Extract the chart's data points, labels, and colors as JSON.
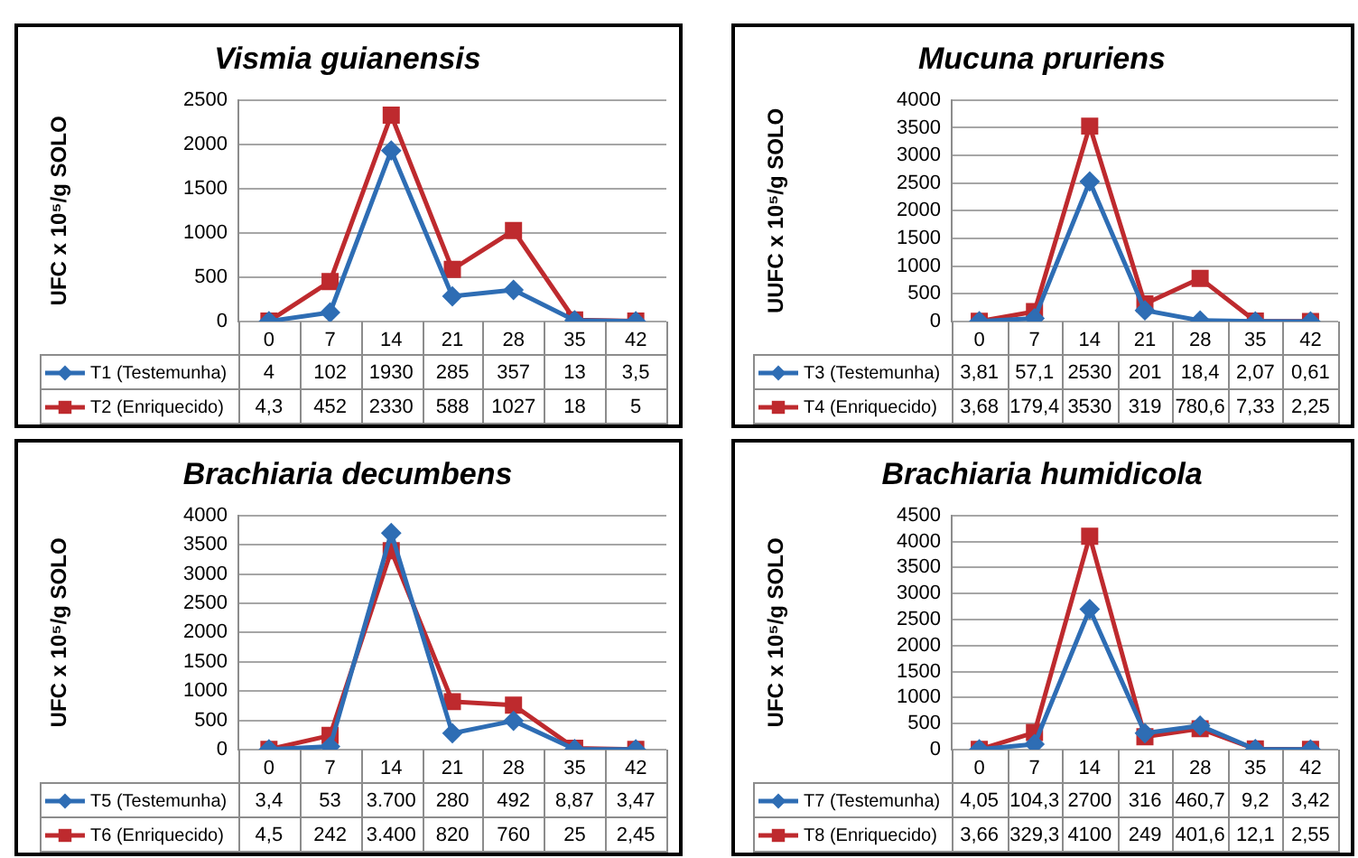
{
  "chart_data": [
    {
      "type": "line",
      "title": "Vismia guianensis",
      "ylabel": "UFC x 10⁵/g SOLO",
      "categories": [
        "0",
        "7",
        "14",
        "21",
        "28",
        "35",
        "42"
      ],
      "ylim": [
        0,
        2500
      ],
      "yticks": [
        0,
        500,
        1000,
        1500,
        2000,
        2500
      ],
      "grid": "y",
      "legend": "bottom",
      "series": [
        {
          "name": "T1 (Testemunha)",
          "color": "#2e6db4",
          "marker": "diamond",
          "values": [
            4,
            102,
            1930,
            285,
            357,
            13,
            3.5
          ],
          "value_labels": [
            "4",
            "102",
            "1930",
            "285",
            "357",
            "13",
            "3,5"
          ]
        },
        {
          "name": "T2 (Enriquecido)",
          "color": "#be2a2e",
          "marker": "square",
          "values": [
            4.3,
            452,
            2330,
            588,
            1027,
            18,
            5
          ],
          "value_labels": [
            "4,3",
            "452",
            "2330",
            "588",
            "1027",
            "18",
            "5"
          ]
        }
      ]
    },
    {
      "type": "line",
      "title": "Mucuna pruriens",
      "ylabel": "UUFC x 10⁵/g SOLO",
      "categories": [
        "0",
        "7",
        "14",
        "21",
        "28",
        "35",
        "42"
      ],
      "ylim": [
        0,
        4000
      ],
      "yticks": [
        0,
        500,
        1000,
        1500,
        2000,
        2500,
        3000,
        3500,
        4000
      ],
      "grid": "y",
      "legend": "bottom",
      "series": [
        {
          "name": "T3 (Testemunha)",
          "color": "#2e6db4",
          "marker": "diamond",
          "values": [
            3.81,
            57.1,
            2530,
            201,
            18.4,
            2.07,
            0.61
          ],
          "value_labels": [
            "3,81",
            "57,1",
            "2530",
            "201",
            "18,4",
            "2,07",
            "0,61"
          ]
        },
        {
          "name": "T4 (Enriquecido)",
          "color": "#be2a2e",
          "marker": "square",
          "values": [
            3.68,
            179.4,
            3530,
            319,
            780.6,
            7.33,
            2.25
          ],
          "value_labels": [
            "3,68",
            "179,4",
            "3530",
            "319",
            "780,6",
            "7,33",
            "2,25"
          ]
        }
      ]
    },
    {
      "type": "line",
      "title": "Brachiaria decumbens",
      "ylabel": "UFC x 10⁵/g SOLO",
      "categories": [
        "0",
        "7",
        "14",
        "21",
        "28",
        "35",
        "42"
      ],
      "ylim": [
        0,
        4000
      ],
      "yticks": [
        0,
        500,
        1000,
        1500,
        2000,
        2500,
        3000,
        3500,
        4000
      ],
      "grid": "y",
      "legend": "bottom",
      "series": [
        {
          "name": "T5 (Testemunha)",
          "color": "#2e6db4",
          "marker": "diamond",
          "values": [
            3.4,
            53,
            3700,
            280,
            492,
            8.87,
            3.47
          ],
          "value_labels": [
            "3,4",
            "53",
            "3.700",
            "280",
            "492",
            "8,87",
            "3,47"
          ]
        },
        {
          "name": "T6 (Enriquecido)",
          "color": "#be2a2e",
          "marker": "square",
          "values": [
            4.5,
            242,
            3400,
            820,
            760,
            25,
            2.45
          ],
          "value_labels": [
            "4,5",
            "242",
            "3.400",
            "820",
            "760",
            "25",
            "2,45"
          ]
        }
      ]
    },
    {
      "type": "line",
      "title": "Brachiaria humidicola",
      "ylabel": "UFC x 10⁵/g SOLO",
      "categories": [
        "0",
        "7",
        "14",
        "21",
        "28",
        "35",
        "42"
      ],
      "ylim": [
        0,
        4500
      ],
      "yticks": [
        0,
        500,
        1000,
        1500,
        2000,
        2500,
        3000,
        3500,
        4000,
        4500
      ],
      "grid": "y",
      "legend": "bottom",
      "series": [
        {
          "name": "T7 (Testemunha)",
          "color": "#2e6db4",
          "marker": "diamond",
          "values": [
            4.05,
            104.3,
            2700,
            316,
            460.7,
            9.2,
            3.42
          ],
          "value_labels": [
            "4,05",
            "104,3",
            "2700",
            "316",
            "460,7",
            "9,2",
            "3,42"
          ]
        },
        {
          "name": "T8 (Enriquecido)",
          "color": "#be2a2e",
          "marker": "square",
          "values": [
            3.66,
            329.3,
            4100,
            249,
            401.6,
            12.1,
            2.55
          ],
          "value_labels": [
            "3,66",
            "329,3",
            "4100",
            "249",
            "401,6",
            "12,1",
            "2,55"
          ]
        }
      ]
    }
  ]
}
